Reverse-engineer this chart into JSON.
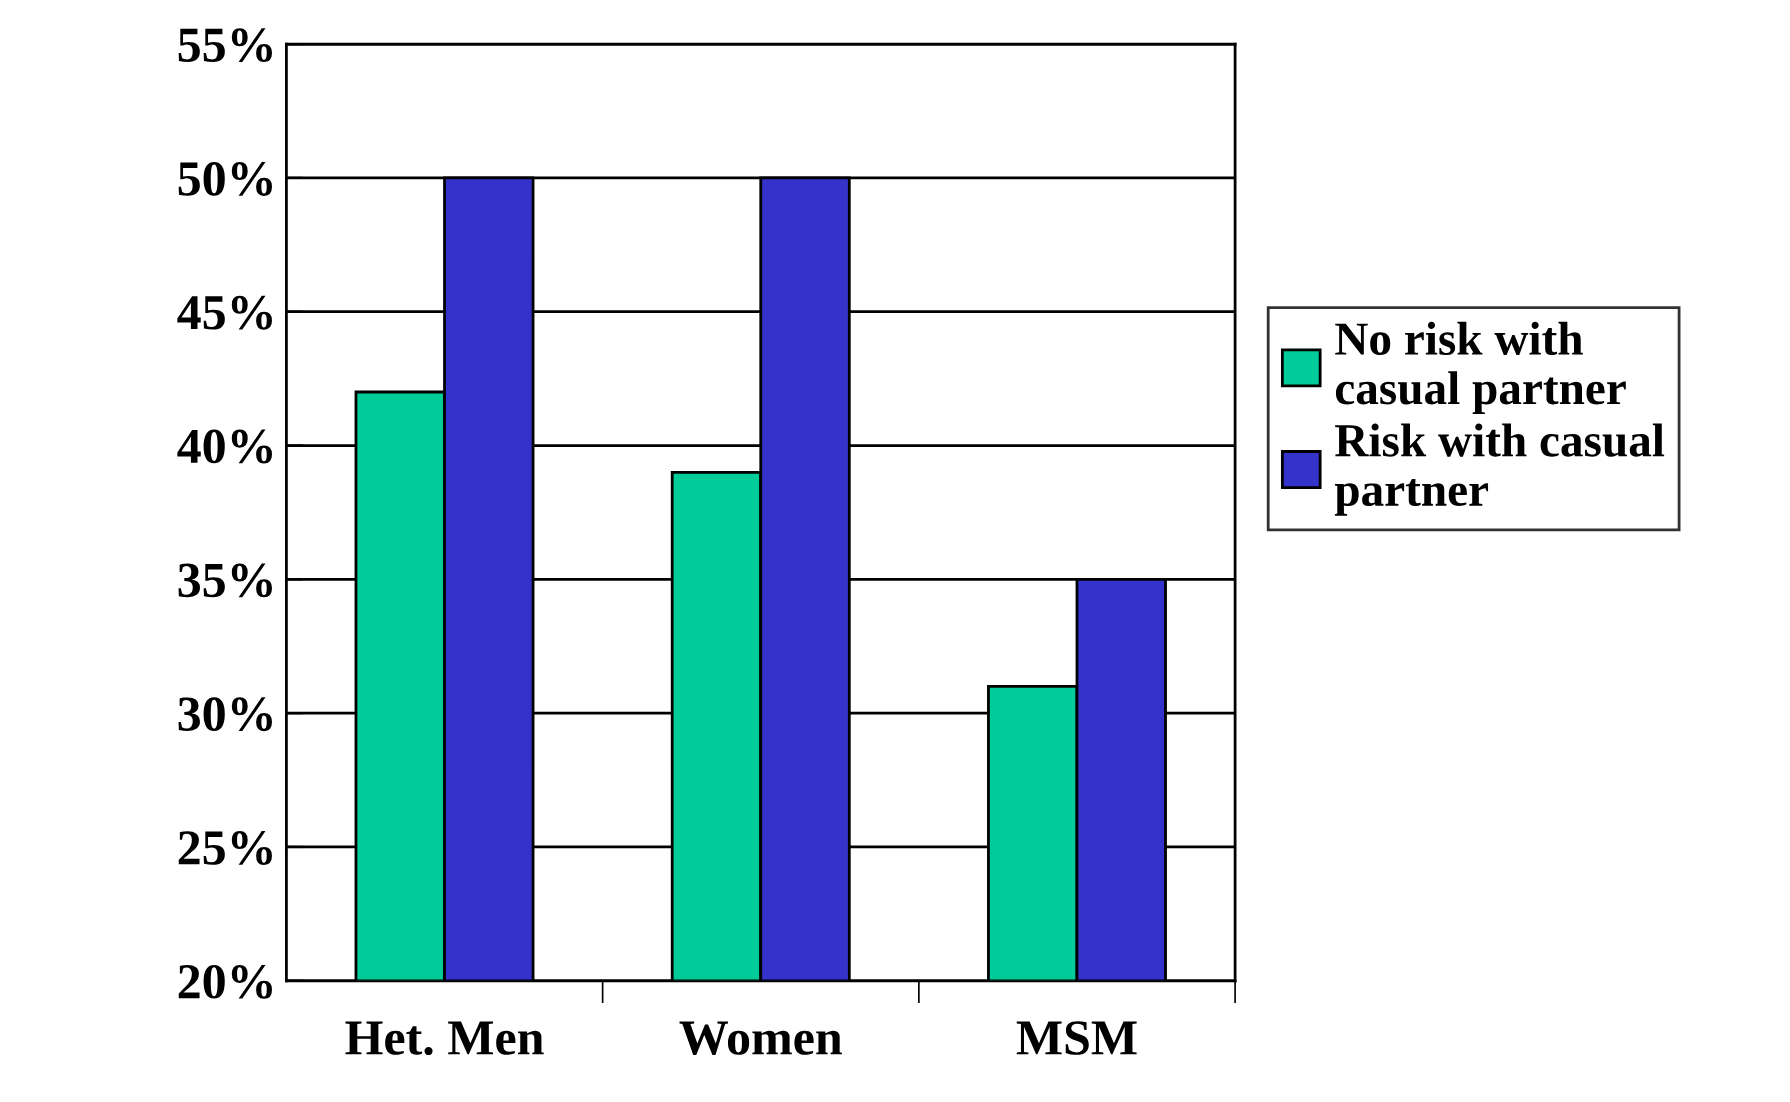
{
  "chart_data": {
    "type": "bar",
    "categories": [
      "Het. Men",
      "Women",
      "MSM"
    ],
    "series": [
      {
        "name": "No risk with\ncasual partner",
        "color": "#00cc99",
        "values": [
          42,
          39,
          31
        ]
      },
      {
        "name": "Risk with casual\npartner",
        "color": "#3333cc",
        "values": [
          50,
          50,
          35
        ]
      }
    ],
    "ylim": [
      20,
      55
    ],
    "yticks": [
      {
        "value": 20,
        "label": "20%"
      },
      {
        "value": 25,
        "label": "25%"
      },
      {
        "value": 30,
        "label": "30%"
      },
      {
        "value": 35,
        "label": "35%"
      },
      {
        "value": 40,
        "label": "40%"
      },
      {
        "value": 45,
        "label": "45%"
      },
      {
        "value": 50,
        "label": "50%"
      },
      {
        "value": 55,
        "label": "55%"
      }
    ],
    "grid": "y",
    "legend": "right"
  }
}
